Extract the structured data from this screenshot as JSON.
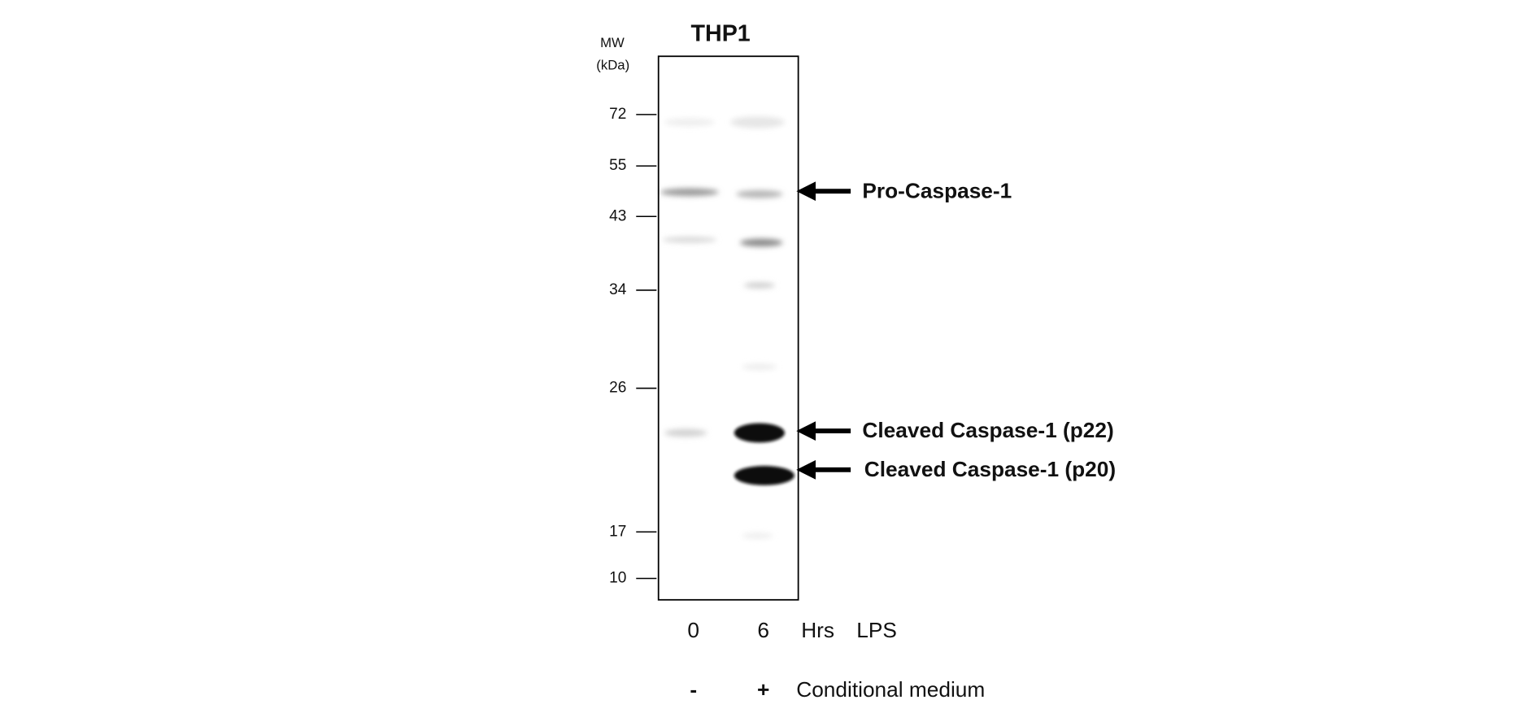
{
  "title": "THP1",
  "mw_label": [
    "MW",
    "(kDa)"
  ],
  "markers": [
    "72",
    "55",
    "43",
    "34",
    "26",
    "17",
    "10"
  ],
  "annotations": [
    "Pro-Caspase-1",
    "Cleaved Caspase-1 (p22)",
    "Cleaved Caspase-1 (p20)"
  ],
  "lanes": {
    "time": [
      "0",
      "6"
    ],
    "time_unit": "Hrs",
    "time_label": "LPS",
    "treatment": [
      "-",
      "+"
    ],
    "treatment_label": "Conditional medium"
  }
}
